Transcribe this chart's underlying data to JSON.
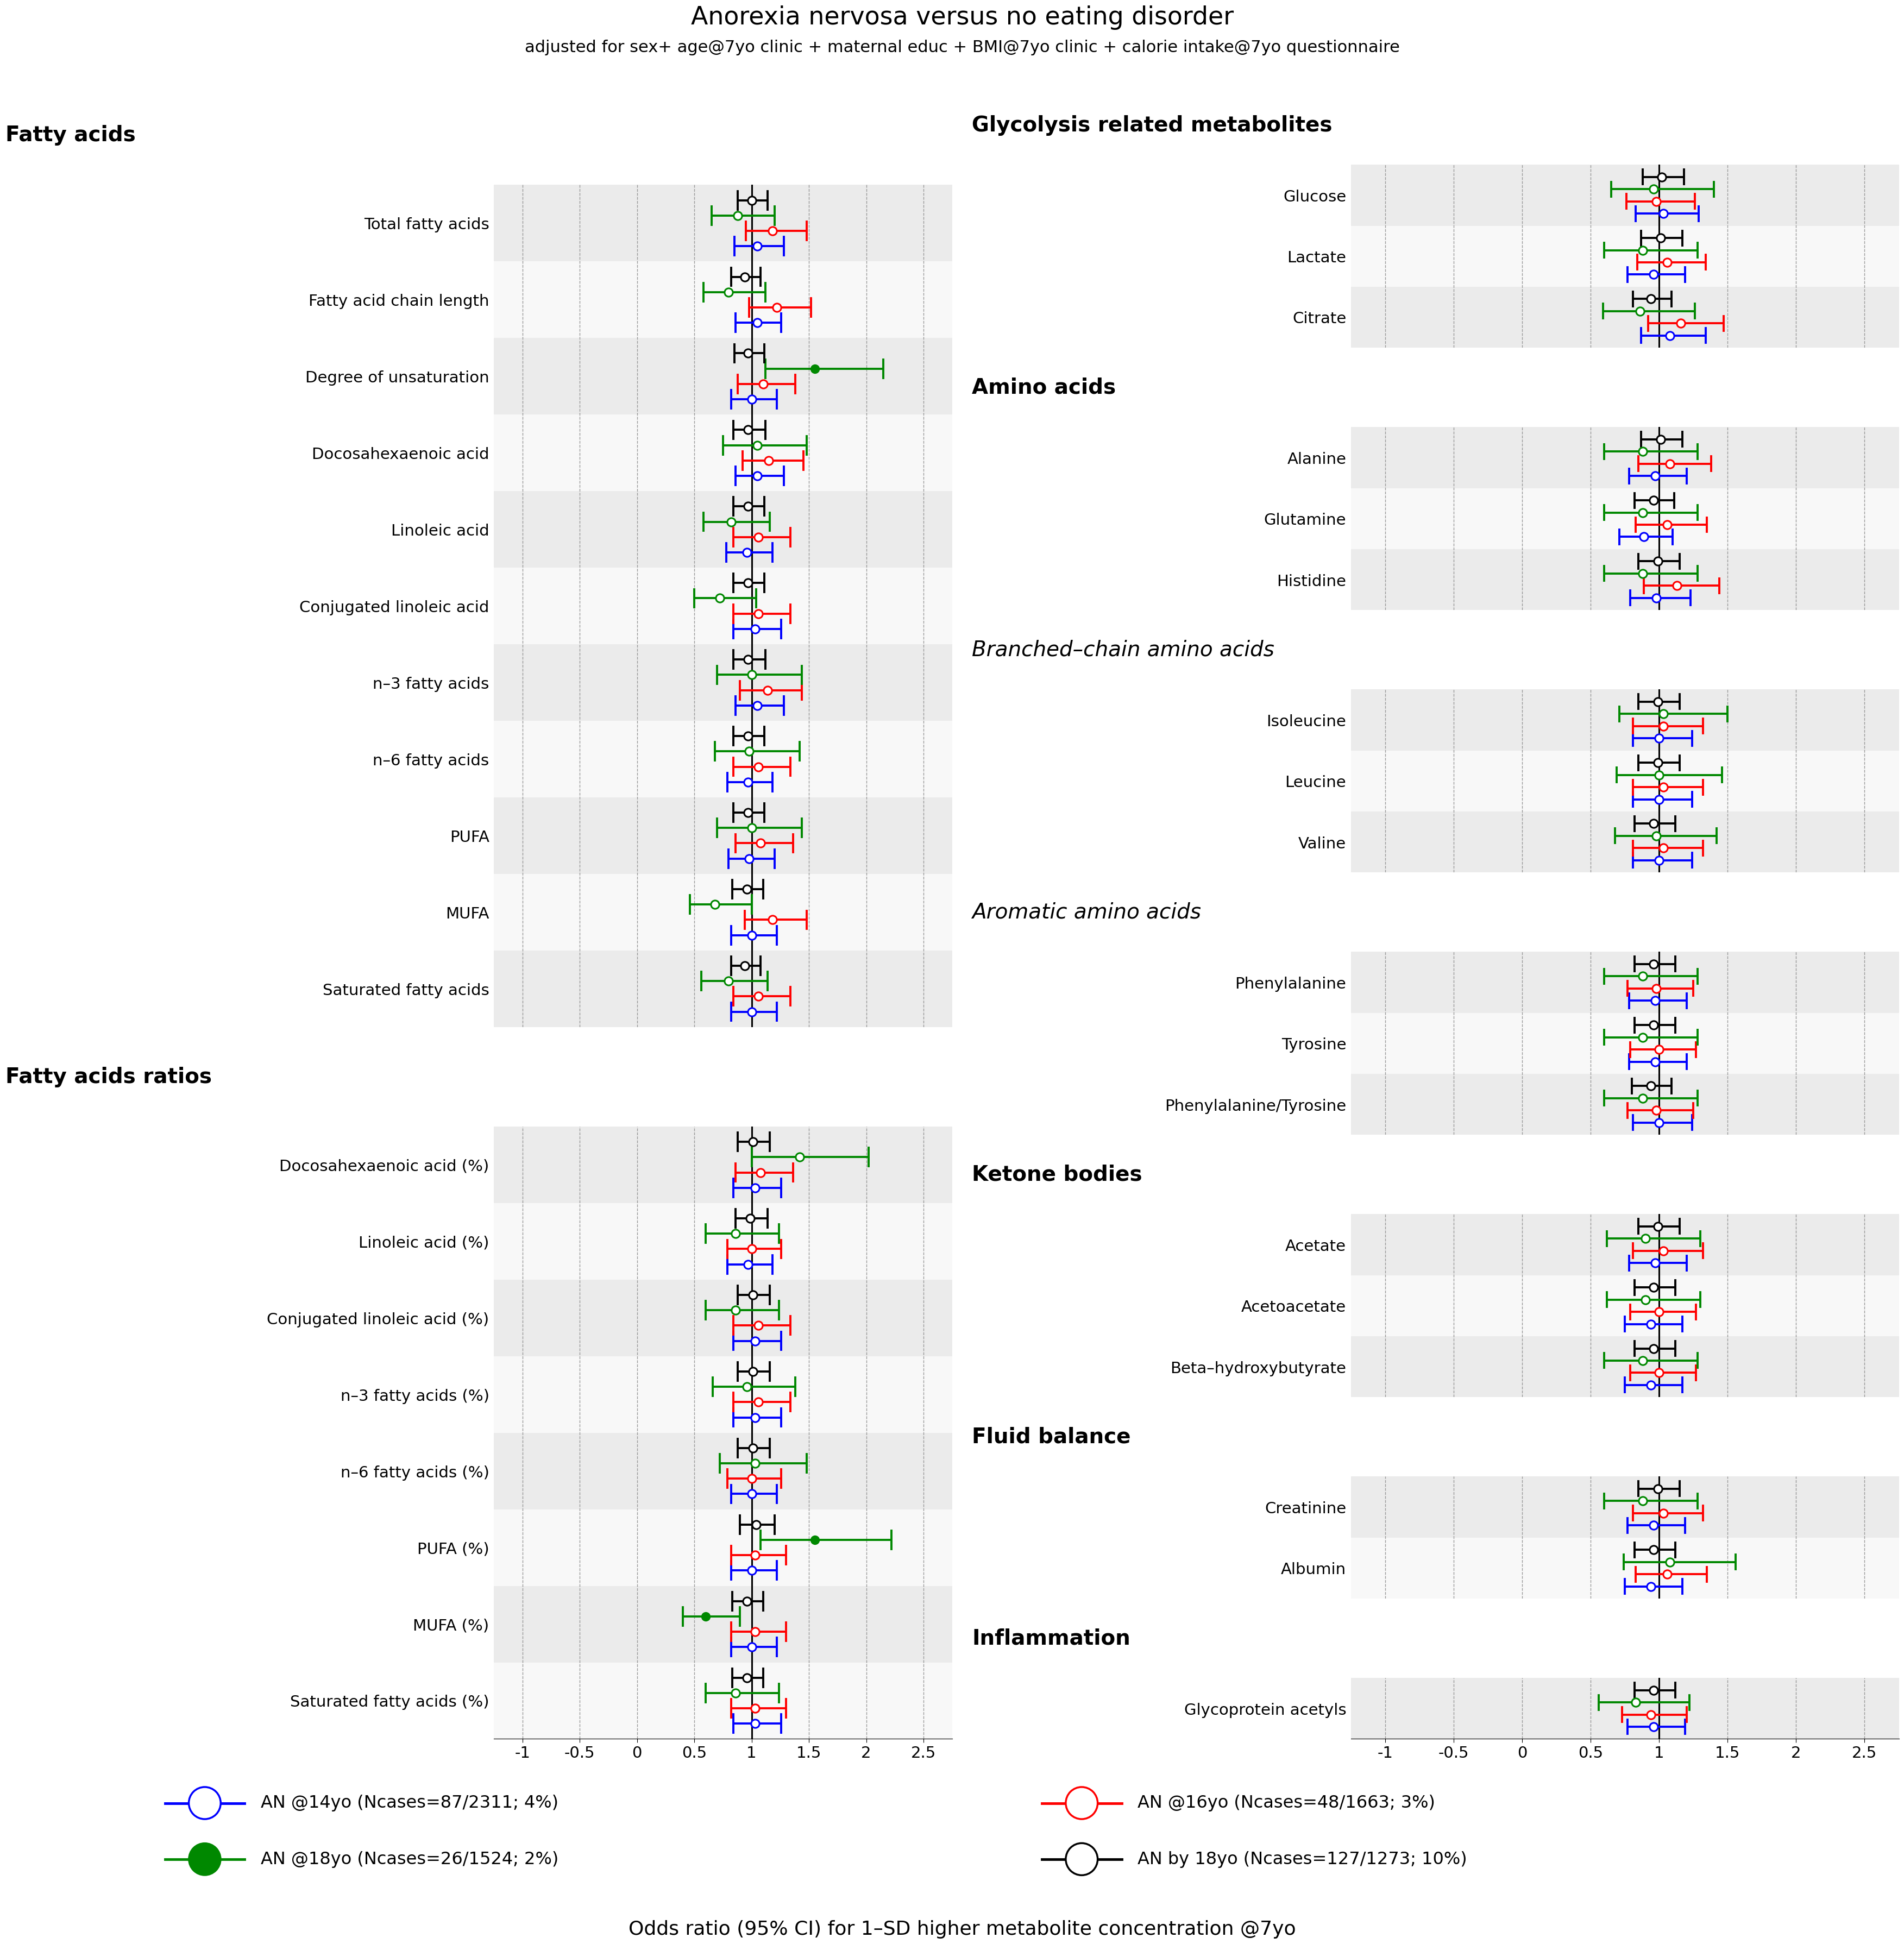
{
  "title": "Anorexia nervosa versus no eating disorder",
  "subtitle": "adjusted for sex+ age@7yo clinic + maternal educ + BMI@7yo clinic + calorie intake@7yo questionnaire",
  "xlabel": "Odds ratio (95% CI) for 1–SD higher metabolite concentration @7yo",
  "left_sections": [
    {
      "name": "Fatty acids",
      "bold": true,
      "italic": false,
      "items": [
        "Total fatty acids",
        "Fatty acid chain length",
        "Degree of unsaturation",
        "Docosahexaenoic acid",
        "Linoleic acid",
        "Conjugated linoleic acid",
        "n–3 fatty acids",
        "n–6 fatty acids",
        "PUFA",
        "MUFA",
        "Saturated fatty acids"
      ]
    },
    {
      "name": "Fatty acids ratios",
      "bold": true,
      "italic": false,
      "items": [
        "Docosahexaenoic acid (%)",
        "Linoleic acid (%)",
        "Conjugated linoleic acid (%)",
        "n–3 fatty acids (%)",
        "n–6 fatty acids (%)",
        "PUFA (%)",
        "MUFA (%)",
        "Saturated fatty acids (%)"
      ]
    }
  ],
  "right_sections": [
    {
      "name": "Glycolysis related metabolites",
      "bold": true,
      "italic": false,
      "items": [
        "Glucose",
        "Lactate",
        "Citrate"
      ]
    },
    {
      "name": "Amino acids",
      "bold": true,
      "italic": false,
      "items": [
        "Alanine",
        "Glutamine",
        "Histidine"
      ]
    },
    {
      "name": "Branched–chain amino acids",
      "bold": false,
      "italic": true,
      "items": [
        "Isoleucine",
        "Leucine",
        "Valine"
      ]
    },
    {
      "name": "Aromatic amino acids",
      "bold": false,
      "italic": true,
      "items": [
        "Phenylalanine",
        "Tyrosine",
        "Phenylalanine/Tyrosine"
      ]
    },
    {
      "name": "Ketone bodies",
      "bold": true,
      "italic": false,
      "items": [
        "Acetate",
        "Acetoacetate",
        "Beta–hydroxybutyrate"
      ]
    },
    {
      "name": "Fluid balance",
      "bold": true,
      "italic": false,
      "items": [
        "Creatinine",
        "Albumin"
      ]
    },
    {
      "name": "Inflammation",
      "bold": true,
      "italic": false,
      "items": [
        "Glycoprotein acetyls"
      ]
    }
  ],
  "colors": {
    "blue": "#0000FF",
    "red": "#FF0000",
    "green": "#008800",
    "black": "#000000"
  },
  "legend": [
    {
      "label": "AN @14yo (Ncases=87/2311; 4%)",
      "color": "#0000FF",
      "filled": false
    },
    {
      "label": "AN @16yo (Ncases=48/1663; 3%)",
      "color": "#FF0000",
      "filled": false
    },
    {
      "label": "AN @18yo (Ncases=26/1524; 2%)",
      "color": "#008800",
      "filled": true
    },
    {
      "label": "AN by 18yo (Ncases=127/1273; 10%)",
      "color": "#000000",
      "filled": false
    }
  ],
  "xlim": [
    -1.25,
    2.75
  ],
  "xticks": [
    -1,
    -0.5,
    0,
    0.5,
    1,
    1.5,
    2,
    2.5
  ],
  "ref_line": 1.0,
  "left_data": {
    "Total fatty acids": {
      "blue": [
        1.05,
        0.85,
        1.28
      ],
      "red": [
        1.18,
        0.95,
        1.48
      ],
      "green": [
        0.88,
        0.65,
        1.2
      ],
      "black": [
        1.0,
        0.88,
        1.14
      ]
    },
    "Fatty acid chain length": {
      "blue": [
        1.05,
        0.86,
        1.26
      ],
      "red": [
        1.22,
        0.98,
        1.52
      ],
      "green": [
        0.8,
        0.58,
        1.12
      ],
      "black": [
        0.94,
        0.82,
        1.08
      ]
    },
    "Degree of unsaturation": {
      "blue": [
        1.0,
        0.82,
        1.22
      ],
      "red": [
        1.1,
        0.88,
        1.38
      ],
      "green": [
        1.55,
        1.12,
        2.15
      ],
      "black": [
        0.97,
        0.85,
        1.11
      ]
    },
    "Docosahexaenoic acid": {
      "blue": [
        1.05,
        0.86,
        1.28
      ],
      "red": [
        1.15,
        0.92,
        1.45
      ],
      "green": [
        1.05,
        0.75,
        1.48
      ],
      "black": [
        0.97,
        0.84,
        1.12
      ]
    },
    "Linoleic acid": {
      "blue": [
        0.96,
        0.78,
        1.18
      ],
      "red": [
        1.06,
        0.84,
        1.34
      ],
      "green": [
        0.82,
        0.58,
        1.16
      ],
      "black": [
        0.97,
        0.84,
        1.11
      ]
    },
    "Conjugated linoleic acid": {
      "blue": [
        1.03,
        0.84,
        1.26
      ],
      "red": [
        1.06,
        0.84,
        1.34
      ],
      "green": [
        0.72,
        0.5,
        1.04
      ],
      "black": [
        0.97,
        0.84,
        1.11
      ]
    },
    "n–3 fatty acids": {
      "blue": [
        1.05,
        0.86,
        1.28
      ],
      "red": [
        1.14,
        0.9,
        1.44
      ],
      "green": [
        1.0,
        0.7,
        1.44
      ],
      "black": [
        0.97,
        0.84,
        1.12
      ]
    },
    "n–6 fatty acids": {
      "blue": [
        0.97,
        0.79,
        1.18
      ],
      "red": [
        1.06,
        0.84,
        1.34
      ],
      "green": [
        0.98,
        0.68,
        1.42
      ],
      "black": [
        0.97,
        0.84,
        1.11
      ]
    },
    "PUFA": {
      "blue": [
        0.98,
        0.8,
        1.2
      ],
      "red": [
        1.08,
        0.86,
        1.36
      ],
      "green": [
        1.0,
        0.7,
        1.44
      ],
      "black": [
        0.97,
        0.84,
        1.11
      ]
    },
    "MUFA": {
      "blue": [
        1.0,
        0.82,
        1.22
      ],
      "red": [
        1.18,
        0.94,
        1.48
      ],
      "green": [
        0.68,
        0.46,
        1.0
      ],
      "black": [
        0.96,
        0.83,
        1.1
      ]
    },
    "Saturated fatty acids": {
      "blue": [
        1.0,
        0.82,
        1.22
      ],
      "red": [
        1.06,
        0.84,
        1.34
      ],
      "green": [
        0.8,
        0.56,
        1.14
      ],
      "black": [
        0.94,
        0.82,
        1.08
      ]
    },
    "Docosahexaenoic acid (%)": {
      "blue": [
        1.03,
        0.84,
        1.26
      ],
      "red": [
        1.08,
        0.86,
        1.36
      ],
      "green": [
        1.42,
        1.0,
        2.02
      ],
      "black": [
        1.01,
        0.88,
        1.16
      ]
    },
    "Linoleic acid (%)": {
      "blue": [
        0.97,
        0.79,
        1.18
      ],
      "red": [
        1.0,
        0.79,
        1.26
      ],
      "green": [
        0.86,
        0.6,
        1.24
      ],
      "black": [
        0.99,
        0.86,
        1.14
      ]
    },
    "Conjugated linoleic acid (%)": {
      "blue": [
        1.03,
        0.84,
        1.26
      ],
      "red": [
        1.06,
        0.84,
        1.34
      ],
      "green": [
        0.86,
        0.6,
        1.24
      ],
      "black": [
        1.01,
        0.88,
        1.16
      ]
    },
    "n–3 fatty acids (%)": {
      "blue": [
        1.03,
        0.84,
        1.26
      ],
      "red": [
        1.06,
        0.84,
        1.34
      ],
      "green": [
        0.96,
        0.66,
        1.38
      ],
      "black": [
        1.01,
        0.88,
        1.16
      ]
    },
    "n–6 fatty acids (%)": {
      "blue": [
        1.0,
        0.82,
        1.22
      ],
      "red": [
        1.0,
        0.79,
        1.26
      ],
      "green": [
        1.03,
        0.72,
        1.48
      ],
      "black": [
        1.01,
        0.88,
        1.16
      ]
    },
    "PUFA (%)": {
      "blue": [
        1.0,
        0.82,
        1.22
      ],
      "red": [
        1.03,
        0.82,
        1.3
      ],
      "green": [
        1.55,
        1.08,
        2.22
      ],
      "black": [
        1.04,
        0.9,
        1.2
      ]
    },
    "MUFA (%)": {
      "blue": [
        1.0,
        0.82,
        1.22
      ],
      "red": [
        1.03,
        0.82,
        1.3
      ],
      "green": [
        0.6,
        0.4,
        0.9
      ],
      "black": [
        0.96,
        0.83,
        1.1
      ]
    },
    "Saturated fatty acids (%)": {
      "blue": [
        1.03,
        0.84,
        1.26
      ],
      "red": [
        1.03,
        0.82,
        1.3
      ],
      "green": [
        0.86,
        0.6,
        1.24
      ],
      "black": [
        0.96,
        0.83,
        1.1
      ]
    }
  },
  "right_data": {
    "Glucose": {
      "blue": [
        1.03,
        0.83,
        1.29
      ],
      "red": [
        0.98,
        0.76,
        1.26
      ],
      "green": [
        0.96,
        0.65,
        1.4
      ],
      "black": [
        1.02,
        0.88,
        1.18
      ]
    },
    "Lactate": {
      "blue": [
        0.96,
        0.77,
        1.19
      ],
      "red": [
        1.06,
        0.84,
        1.34
      ],
      "green": [
        0.88,
        0.6,
        1.28
      ],
      "black": [
        1.01,
        0.87,
        1.17
      ]
    },
    "Citrate": {
      "blue": [
        1.08,
        0.87,
        1.34
      ],
      "red": [
        1.16,
        0.92,
        1.47
      ],
      "green": [
        0.86,
        0.59,
        1.26
      ],
      "black": [
        0.94,
        0.81,
        1.09
      ]
    },
    "Alanine": {
      "blue": [
        0.97,
        0.78,
        1.2
      ],
      "red": [
        1.08,
        0.85,
        1.38
      ],
      "green": [
        0.88,
        0.6,
        1.28
      ],
      "black": [
        1.01,
        0.87,
        1.17
      ]
    },
    "Glutamine": {
      "blue": [
        0.89,
        0.71,
        1.1
      ],
      "red": [
        1.06,
        0.83,
        1.35
      ],
      "green": [
        0.88,
        0.6,
        1.28
      ],
      "black": [
        0.96,
        0.82,
        1.11
      ]
    },
    "Histidine": {
      "blue": [
        0.98,
        0.79,
        1.23
      ],
      "red": [
        1.13,
        0.89,
        1.44
      ],
      "green": [
        0.88,
        0.6,
        1.28
      ],
      "black": [
        0.99,
        0.85,
        1.15
      ]
    },
    "Isoleucine": {
      "blue": [
        1.0,
        0.81,
        1.24
      ],
      "red": [
        1.03,
        0.81,
        1.32
      ],
      "green": [
        1.03,
        0.71,
        1.5
      ],
      "black": [
        0.99,
        0.85,
        1.15
      ]
    },
    "Leucine": {
      "blue": [
        1.0,
        0.81,
        1.24
      ],
      "red": [
        1.03,
        0.81,
        1.32
      ],
      "green": [
        1.0,
        0.69,
        1.46
      ],
      "black": [
        0.99,
        0.85,
        1.15
      ]
    },
    "Valine": {
      "blue": [
        1.0,
        0.81,
        1.24
      ],
      "red": [
        1.03,
        0.81,
        1.32
      ],
      "green": [
        0.98,
        0.68,
        1.42
      ],
      "black": [
        0.96,
        0.82,
        1.12
      ]
    },
    "Phenylalanine": {
      "blue": [
        0.97,
        0.78,
        1.2
      ],
      "red": [
        0.98,
        0.77,
        1.25
      ],
      "green": [
        0.88,
        0.6,
        1.28
      ],
      "black": [
        0.96,
        0.82,
        1.12
      ]
    },
    "Tyrosine": {
      "blue": [
        0.97,
        0.78,
        1.2
      ],
      "red": [
        1.0,
        0.79,
        1.27
      ],
      "green": [
        0.88,
        0.6,
        1.28
      ],
      "black": [
        0.96,
        0.82,
        1.12
      ]
    },
    "Phenylalanine/Tyrosine": {
      "blue": [
        1.0,
        0.81,
        1.24
      ],
      "red": [
        0.98,
        0.77,
        1.25
      ],
      "green": [
        0.88,
        0.6,
        1.28
      ],
      "black": [
        0.94,
        0.8,
        1.09
      ]
    },
    "Acetate": {
      "blue": [
        0.97,
        0.78,
        1.2
      ],
      "red": [
        1.03,
        0.81,
        1.32
      ],
      "green": [
        0.9,
        0.62,
        1.3
      ],
      "black": [
        0.99,
        0.85,
        1.15
      ]
    },
    "Acetoacetate": {
      "blue": [
        0.94,
        0.75,
        1.17
      ],
      "red": [
        1.0,
        0.79,
        1.27
      ],
      "green": [
        0.9,
        0.62,
        1.3
      ],
      "black": [
        0.96,
        0.82,
        1.12
      ]
    },
    "Beta–hydroxybutyrate": {
      "blue": [
        0.94,
        0.75,
        1.17
      ],
      "red": [
        1.0,
        0.79,
        1.27
      ],
      "green": [
        0.88,
        0.6,
        1.28
      ],
      "black": [
        0.96,
        0.82,
        1.12
      ]
    },
    "Creatinine": {
      "blue": [
        0.96,
        0.77,
        1.19
      ],
      "red": [
        1.03,
        0.81,
        1.32
      ],
      "green": [
        0.88,
        0.6,
        1.28
      ],
      "black": [
        0.99,
        0.85,
        1.15
      ]
    },
    "Albumin": {
      "blue": [
        0.94,
        0.75,
        1.17
      ],
      "red": [
        1.06,
        0.83,
        1.35
      ],
      "green": [
        1.08,
        0.74,
        1.56
      ],
      "black": [
        0.96,
        0.82,
        1.12
      ]
    },
    "Glycoprotein acetyls": {
      "blue": [
        0.96,
        0.77,
        1.19
      ],
      "red": [
        0.94,
        0.73,
        1.2
      ],
      "green": [
        0.83,
        0.56,
        1.22
      ],
      "black": [
        0.96,
        0.82,
        1.12
      ]
    }
  },
  "filled_markers": {
    "left": {
      "Degree of unsaturation": [
        "green"
      ],
      "PUFA (%)": [
        "green"
      ],
      "MUFA (%)": [
        "green"
      ]
    },
    "right": {}
  },
  "bg_colors": [
    "#ebebeb",
    "#f8f8f8"
  ]
}
